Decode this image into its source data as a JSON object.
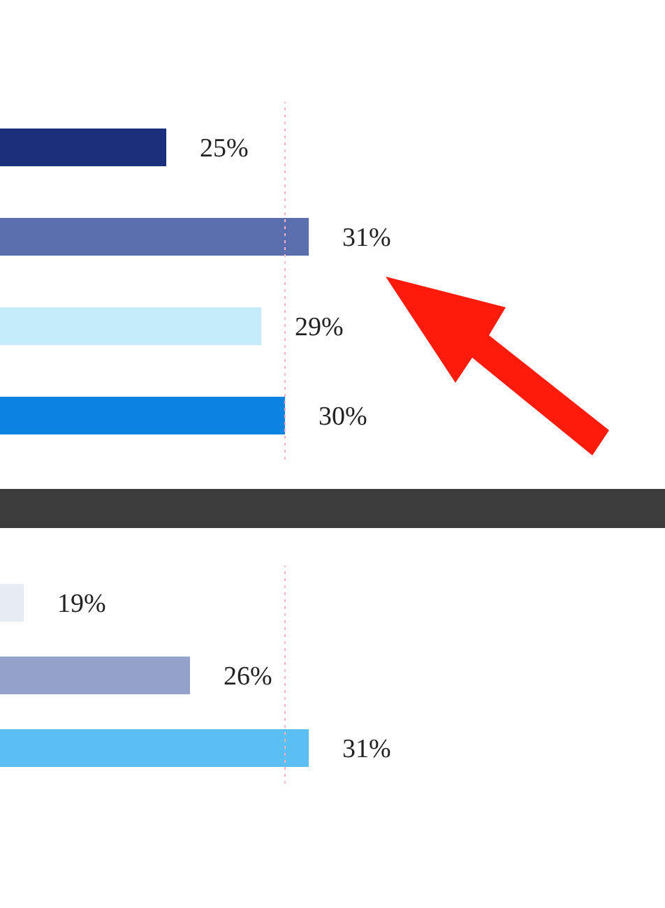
{
  "chart_data": [
    {
      "type": "bar",
      "orientation": "horizontal",
      "categories": [
        null,
        null,
        null,
        null
      ],
      "values": [
        25,
        31,
        29,
        30
      ],
      "colors": [
        "#1a2f7a",
        "#5b6fae",
        "#c5ecfb",
        "#0a84e0"
      ],
      "value_labels": [
        "25%",
        "31%",
        "29%",
        "30%"
      ],
      "xlim": [
        18,
        46
      ],
      "tick_labels": false,
      "ref_lines": [
        {
          "axis": "x",
          "value": 30,
          "color": "#f4b6c2",
          "line_style": "dotted"
        }
      ]
    },
    {
      "type": "bar",
      "orientation": "horizontal",
      "categories": [
        null,
        null,
        null
      ],
      "values": [
        19,
        26,
        31
      ],
      "colors": [
        "#e8ecf5",
        "#94a3cc",
        "#5bbff5"
      ],
      "value_labels": [
        "19%",
        "26%",
        "31%"
      ],
      "xlim": [
        18,
        46
      ],
      "tick_labels": false,
      "ref_lines": [
        {
          "axis": "x",
          "value": 30,
          "color": "#f4b6c2",
          "line_style": "dotted"
        }
      ]
    }
  ]
}
